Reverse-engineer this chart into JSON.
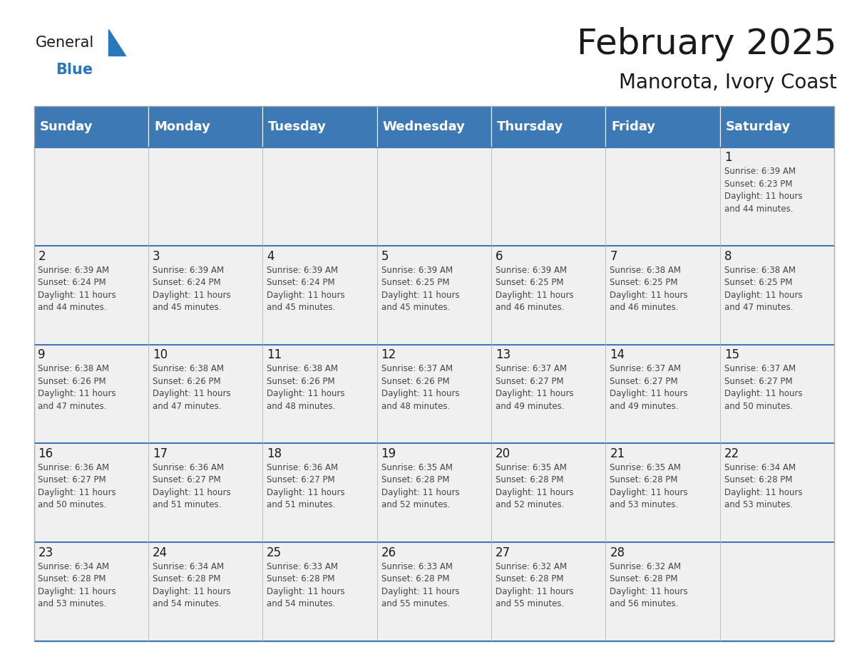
{
  "title": "February 2025",
  "subtitle": "Manorota, Ivory Coast",
  "header_bg": "#3d7ab5",
  "header_text_color": "#ffffff",
  "cell_bg_light": "#f0f0f0",
  "cell_bg_white": "#ffffff",
  "day_headers": [
    "Sunday",
    "Monday",
    "Tuesday",
    "Wednesday",
    "Thursday",
    "Friday",
    "Saturday"
  ],
  "calendar_data": [
    [
      null,
      null,
      null,
      null,
      null,
      null,
      {
        "day": 1,
        "sunrise": "6:39 AM",
        "sunset": "6:23 PM",
        "daylight": "11 hours\nand 44 minutes."
      }
    ],
    [
      {
        "day": 2,
        "sunrise": "6:39 AM",
        "sunset": "6:24 PM",
        "daylight": "11 hours\nand 44 minutes."
      },
      {
        "day": 3,
        "sunrise": "6:39 AM",
        "sunset": "6:24 PM",
        "daylight": "11 hours\nand 45 minutes."
      },
      {
        "day": 4,
        "sunrise": "6:39 AM",
        "sunset": "6:24 PM",
        "daylight": "11 hours\nand 45 minutes."
      },
      {
        "day": 5,
        "sunrise": "6:39 AM",
        "sunset": "6:25 PM",
        "daylight": "11 hours\nand 45 minutes."
      },
      {
        "day": 6,
        "sunrise": "6:39 AM",
        "sunset": "6:25 PM",
        "daylight": "11 hours\nand 46 minutes."
      },
      {
        "day": 7,
        "sunrise": "6:38 AM",
        "sunset": "6:25 PM",
        "daylight": "11 hours\nand 46 minutes."
      },
      {
        "day": 8,
        "sunrise": "6:38 AM",
        "sunset": "6:25 PM",
        "daylight": "11 hours\nand 47 minutes."
      }
    ],
    [
      {
        "day": 9,
        "sunrise": "6:38 AM",
        "sunset": "6:26 PM",
        "daylight": "11 hours\nand 47 minutes."
      },
      {
        "day": 10,
        "sunrise": "6:38 AM",
        "sunset": "6:26 PM",
        "daylight": "11 hours\nand 47 minutes."
      },
      {
        "day": 11,
        "sunrise": "6:38 AM",
        "sunset": "6:26 PM",
        "daylight": "11 hours\nand 48 minutes."
      },
      {
        "day": 12,
        "sunrise": "6:37 AM",
        "sunset": "6:26 PM",
        "daylight": "11 hours\nand 48 minutes."
      },
      {
        "day": 13,
        "sunrise": "6:37 AM",
        "sunset": "6:27 PM",
        "daylight": "11 hours\nand 49 minutes."
      },
      {
        "day": 14,
        "sunrise": "6:37 AM",
        "sunset": "6:27 PM",
        "daylight": "11 hours\nand 49 minutes."
      },
      {
        "day": 15,
        "sunrise": "6:37 AM",
        "sunset": "6:27 PM",
        "daylight": "11 hours\nand 50 minutes."
      }
    ],
    [
      {
        "day": 16,
        "sunrise": "6:36 AM",
        "sunset": "6:27 PM",
        "daylight": "11 hours\nand 50 minutes."
      },
      {
        "day": 17,
        "sunrise": "6:36 AM",
        "sunset": "6:27 PM",
        "daylight": "11 hours\nand 51 minutes."
      },
      {
        "day": 18,
        "sunrise": "6:36 AM",
        "sunset": "6:27 PM",
        "daylight": "11 hours\nand 51 minutes."
      },
      {
        "day": 19,
        "sunrise": "6:35 AM",
        "sunset": "6:28 PM",
        "daylight": "11 hours\nand 52 minutes."
      },
      {
        "day": 20,
        "sunrise": "6:35 AM",
        "sunset": "6:28 PM",
        "daylight": "11 hours\nand 52 minutes."
      },
      {
        "day": 21,
        "sunrise": "6:35 AM",
        "sunset": "6:28 PM",
        "daylight": "11 hours\nand 53 minutes."
      },
      {
        "day": 22,
        "sunrise": "6:34 AM",
        "sunset": "6:28 PM",
        "daylight": "11 hours\nand 53 minutes."
      }
    ],
    [
      {
        "day": 23,
        "sunrise": "6:34 AM",
        "sunset": "6:28 PM",
        "daylight": "11 hours\nand 53 minutes."
      },
      {
        "day": 24,
        "sunrise": "6:34 AM",
        "sunset": "6:28 PM",
        "daylight": "11 hours\nand 54 minutes."
      },
      {
        "day": 25,
        "sunrise": "6:33 AM",
        "sunset": "6:28 PM",
        "daylight": "11 hours\nand 54 minutes."
      },
      {
        "day": 26,
        "sunrise": "6:33 AM",
        "sunset": "6:28 PM",
        "daylight": "11 hours\nand 55 minutes."
      },
      {
        "day": 27,
        "sunrise": "6:32 AM",
        "sunset": "6:28 PM",
        "daylight": "11 hours\nand 55 minutes."
      },
      {
        "day": 28,
        "sunrise": "6:32 AM",
        "sunset": "6:28 PM",
        "daylight": "11 hours\nand 56 minutes."
      },
      null
    ]
  ],
  "logo_general_color": "#1a1a1a",
  "logo_blue_color": "#2878be",
  "title_fontsize": 36,
  "subtitle_fontsize": 20,
  "header_fontsize": 13,
  "day_number_fontsize": 12,
  "cell_text_fontsize": 8.5
}
